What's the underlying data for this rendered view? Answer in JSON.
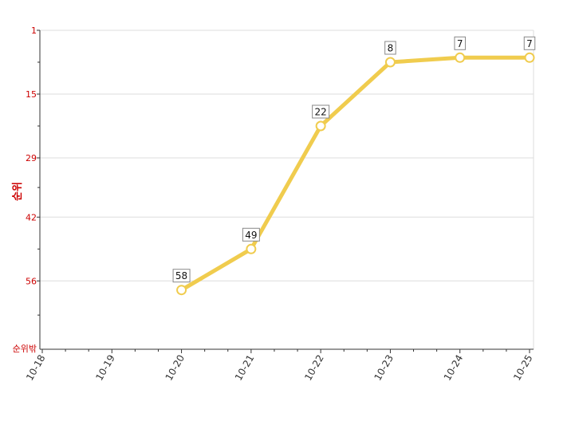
{
  "chart_data": {
    "type": "line",
    "categories": [
      "10-18",
      "10-19",
      "10-20",
      "10-21",
      "10-22",
      "10-23",
      "10-24",
      "10-25"
    ],
    "series": [
      {
        "values": [
          null,
          null,
          58,
          49,
          22,
          8,
          7,
          7
        ]
      }
    ],
    "data_labels": [
      "",
      "",
      "58",
      "49",
      "22",
      "8",
      "7",
      "7"
    ],
    "ylabel": "순위",
    "y_ticks": [
      1,
      15,
      29,
      42,
      56
    ],
    "y_tick_labels": [
      "1",
      "15",
      "29",
      "42",
      "56"
    ],
    "y_bottom_label": "순위밖",
    "ylim": [
      1,
      71
    ],
    "y_reversed": true,
    "grid": true,
    "line_color": "#f0cc4e",
    "axis_label_color": "#cc0000",
    "marker_fill": "#ffffff"
  }
}
